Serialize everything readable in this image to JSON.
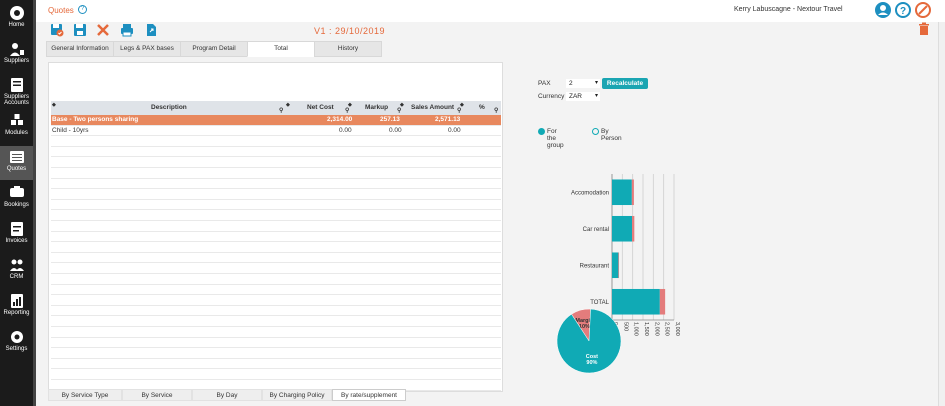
{
  "sidebar": {
    "items": [
      {
        "label": "Home",
        "icon": "home-icon"
      },
      {
        "label": "Suppliers",
        "icon": "suppliers-icon"
      },
      {
        "label": "Suppliers Accounts",
        "icon": "supplier-accounts-icon"
      },
      {
        "label": "Modules",
        "icon": "modules-icon"
      },
      {
        "label": "Quotes",
        "icon": "quotes-icon"
      },
      {
        "label": "Bookings",
        "icon": "bookings-icon"
      },
      {
        "label": "Invoices",
        "icon": "invoices-icon"
      },
      {
        "label": "CRM",
        "icon": "crm-icon"
      },
      {
        "label": "Reporting",
        "icon": "reporting-icon"
      },
      {
        "label": "Settings",
        "icon": "settings-icon"
      }
    ],
    "active": "Quotes"
  },
  "header": {
    "title": "Quotes",
    "help": "?",
    "user": "Kerry Labuscagne - Nextour Travel"
  },
  "toolbar": {
    "version": "V1 : 29/10/2019",
    "buttons": [
      "save-check-icon",
      "save-icon",
      "cancel-icon",
      "print-icon",
      "export-icon"
    ]
  },
  "tabs": [
    "General Information",
    "Legs & PAX bases",
    "Program Detail",
    "Total",
    "History"
  ],
  "active_tab": "Total",
  "grid": {
    "columns": [
      "Description",
      "Net Cost",
      "Markup",
      "Sales Amount",
      "%"
    ],
    "rows": [
      {
        "description": "Base - Two persons sharing",
        "net": "2,314.00",
        "markup": "257.13",
        "sales": "2,571.13",
        "pct": ""
      },
      {
        "description": "Child - 10yrs",
        "net": "0.00",
        "markup": "0.00",
        "sales": "0.00",
        "pct": ""
      }
    ]
  },
  "bottom_tabs": [
    "By Service Type",
    "By Service",
    "By Day",
    "By Charging Policy",
    "By rate/supplement"
  ],
  "active_bottom_tab": "By rate/supplement",
  "controls": {
    "pax_label": "PAX",
    "pax_value": "2",
    "currency_label": "Currency",
    "currency_value": "ZAR",
    "recalculate": "Recalculate",
    "radio_group": "For the group",
    "radio_person": "By Person"
  },
  "chart_data": [
    {
      "type": "bar",
      "orientation": "horizontal",
      "stacked": true,
      "categories": [
        "Accomodation",
        "Car rental",
        "Restaurant",
        "TOTAL"
      ],
      "series": [
        {
          "values": [
            960,
            970,
            310,
            2314
          ],
          "color": "#10aab5"
        },
        {
          "values": [
            100,
            110,
            30,
            257
          ],
          "color": "#e47c7c"
        }
      ],
      "x_ticks": [
        "0",
        "500",
        "1,000",
        "1,500",
        "2,000",
        "2,500",
        "3,000"
      ],
      "xlim": [
        0,
        3000
      ],
      "grid": true
    },
    {
      "type": "pie",
      "slices": [
        {
          "label": "Margin",
          "pct_label": "10%",
          "value": 10,
          "color": "#e47c7c"
        },
        {
          "label": "Cost",
          "pct_label": "90%",
          "value": 90,
          "color": "#10aab5"
        }
      ]
    }
  ],
  "colors": {
    "accent": "#e5693b",
    "teal": "#10aab5",
    "highlight_row": "#e8885e",
    "blue": "#1d8fc0"
  }
}
